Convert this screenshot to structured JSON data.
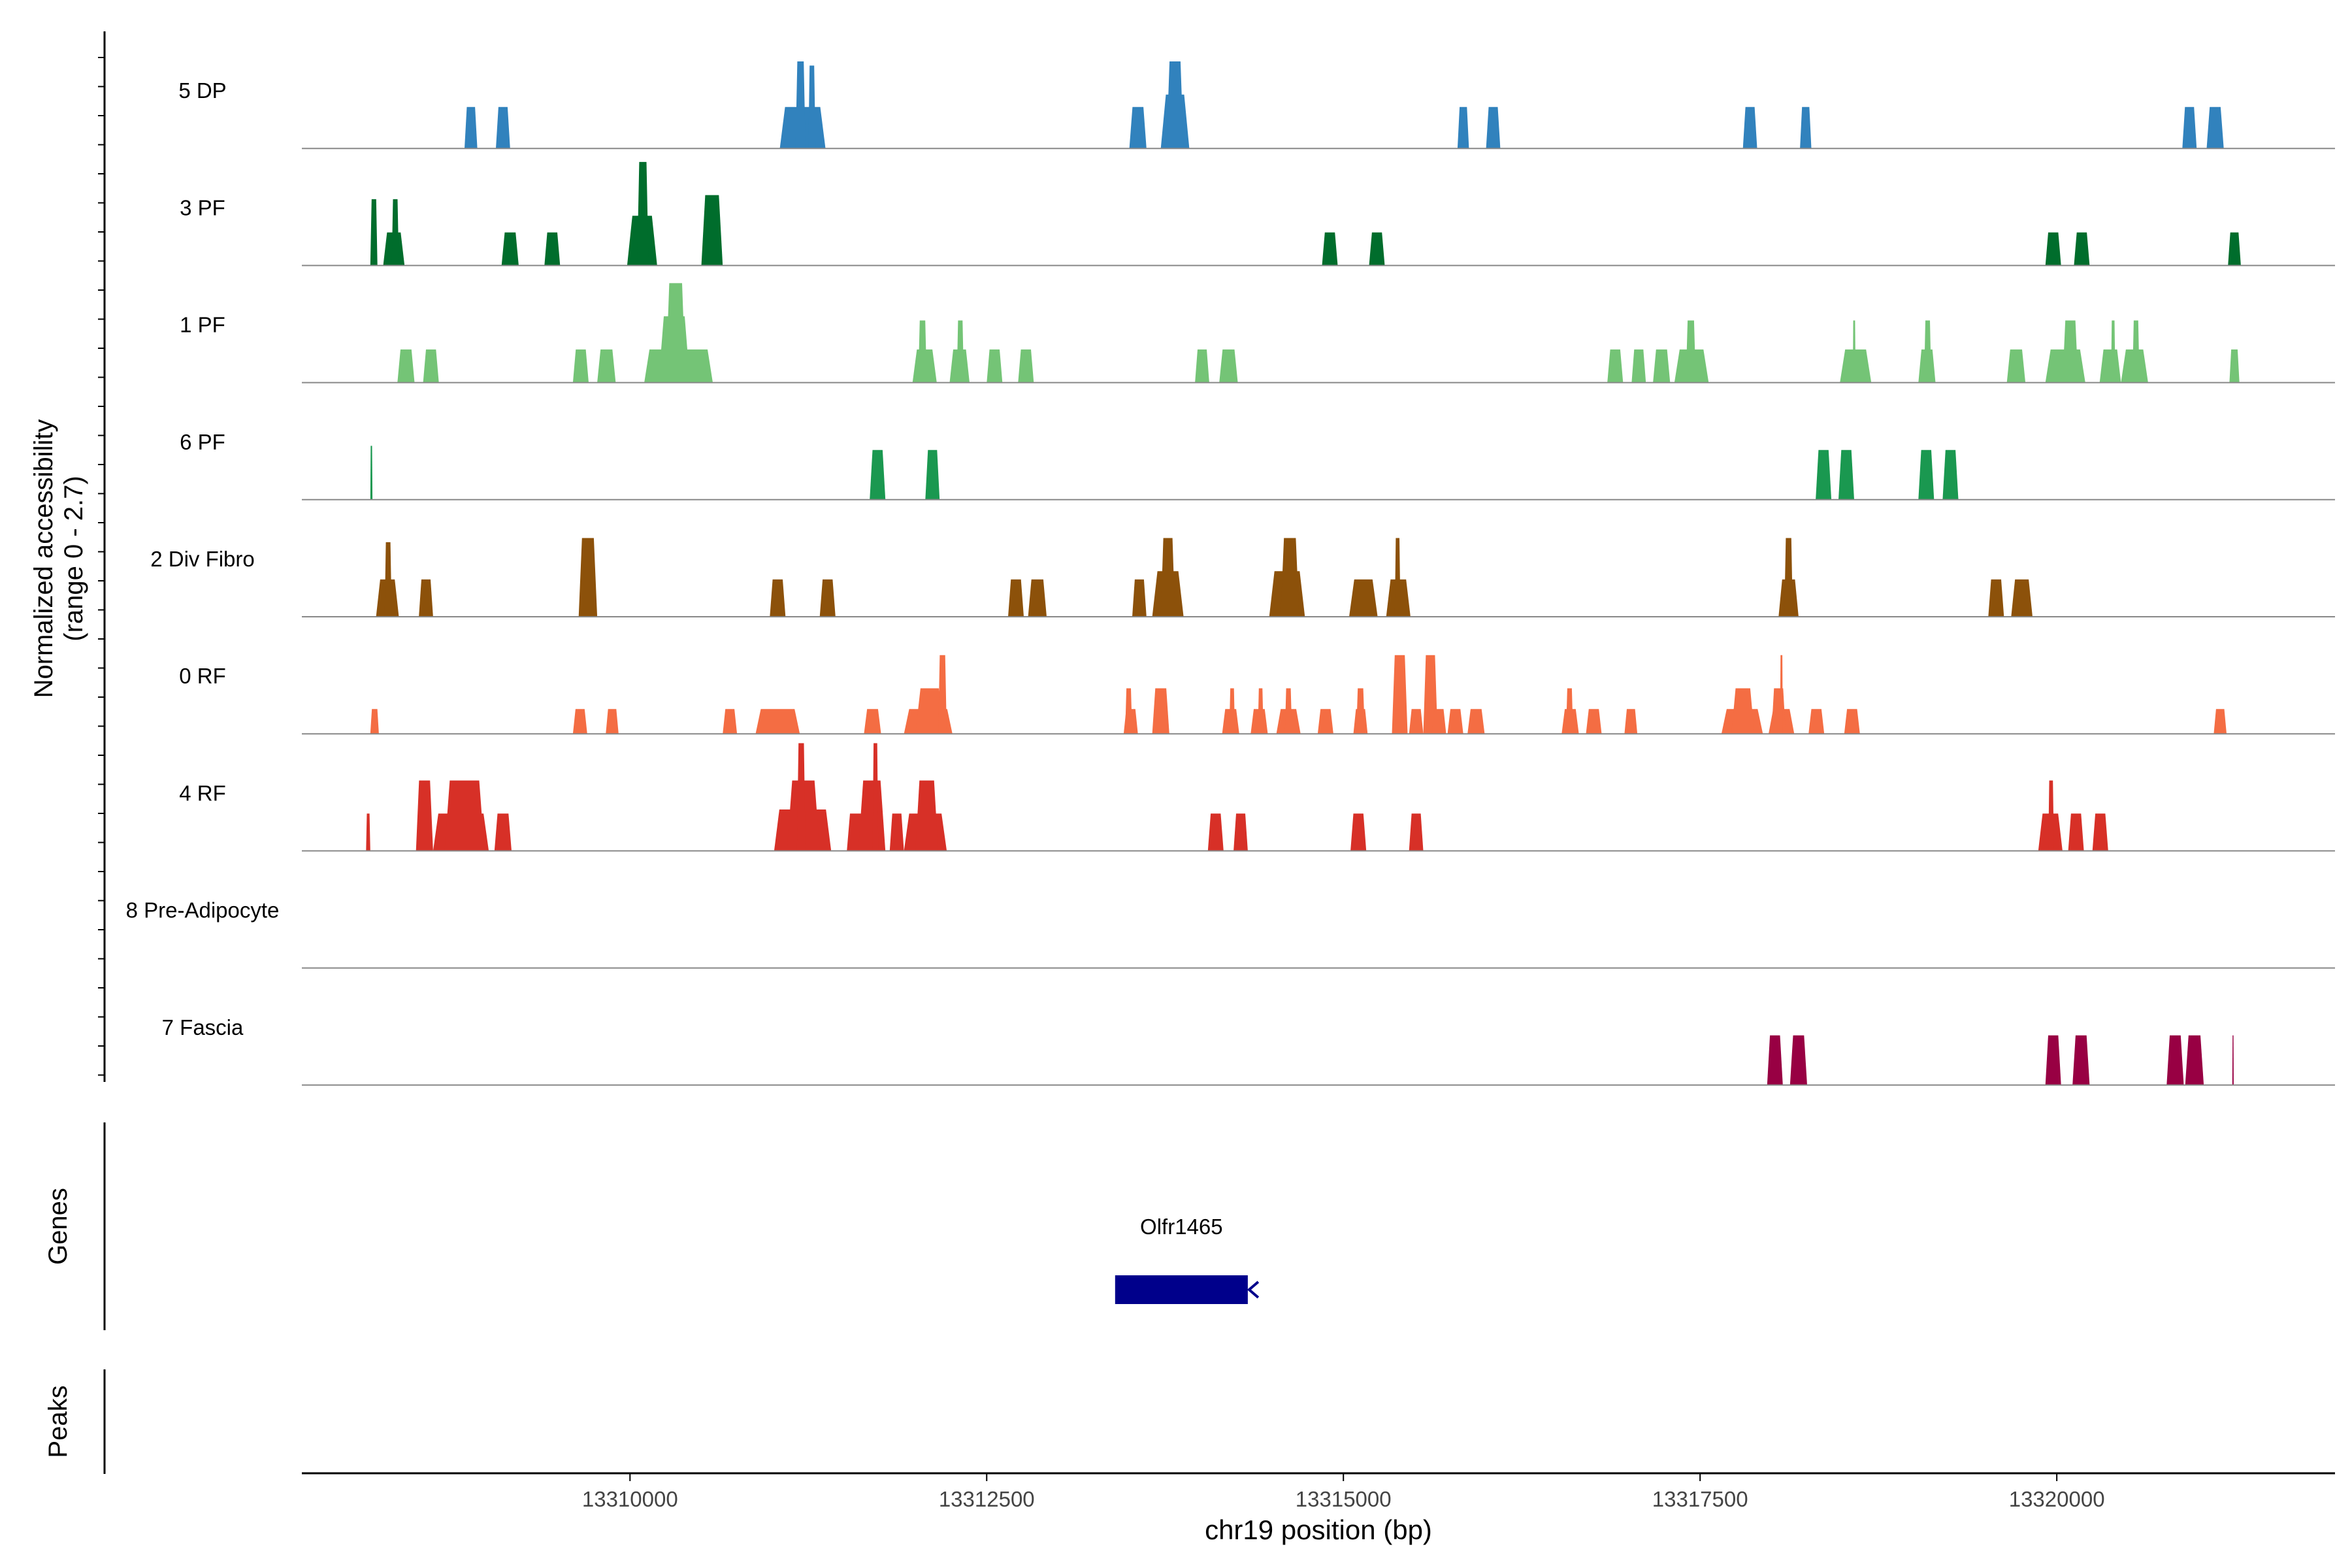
{
  "chart_data": {
    "type": "area",
    "chromosome": "chr19",
    "xlabel": "chr19 position (bp)",
    "x_ticks": [
      13310000,
      13312500,
      13315000,
      13317500,
      13320000
    ],
    "x_tick_labels": [
      "13310000",
      "13312500",
      "13315000",
      "13317500",
      "13320000"
    ],
    "xlim": [
      13307700,
      13321950
    ],
    "ylabel": "Normalized accessibility",
    "ylabel_range": "(range 0 - 2.7)",
    "ylim": [
      0,
      2.7
    ],
    "tracks": [
      {
        "name": "5 DP",
        "color": "#3182bd",
        "peaks": [
          {
            "start": 13308840,
            "end": 13308930,
            "value": 1.0
          },
          {
            "start": 13309060,
            "end": 13309160,
            "value": 1.0
          },
          {
            "start": 13311050,
            "end": 13311370,
            "value": 1.0
          },
          {
            "start": 13311160,
            "end": 13311230,
            "value": 2.1
          },
          {
            "start": 13311250,
            "end": 13311300,
            "value": 2.0
          },
          {
            "start": 13313500,
            "end": 13313620,
            "value": 1.0
          },
          {
            "start": 13313720,
            "end": 13313920,
            "value": 1.3
          },
          {
            "start": 13313760,
            "end": 13313880,
            "value": 2.1
          },
          {
            "start": 13315800,
            "end": 13315880,
            "value": 1.0
          },
          {
            "start": 13316000,
            "end": 13316100,
            "value": 1.0
          },
          {
            "start": 13317800,
            "end": 13317900,
            "value": 1.0
          },
          {
            "start": 13318200,
            "end": 13318280,
            "value": 1.0
          },
          {
            "start": 13320880,
            "end": 13320980,
            "value": 1.0
          },
          {
            "start": 13321050,
            "end": 13321170,
            "value": 1.0
          }
        ]
      },
      {
        "name": "3 PF",
        "color": "#006d2c",
        "peaks": [
          {
            "start": 13308180,
            "end": 13308230,
            "value": 1.6
          },
          {
            "start": 13308270,
            "end": 13308420,
            "value": 0.8
          },
          {
            "start": 13308330,
            "end": 13308380,
            "value": 1.6
          },
          {
            "start": 13309100,
            "end": 13309220,
            "value": 0.8
          },
          {
            "start": 13309400,
            "end": 13309510,
            "value": 0.8
          },
          {
            "start": 13309980,
            "end": 13310190,
            "value": 1.2
          },
          {
            "start": 13310050,
            "end": 13310130,
            "value": 2.5
          },
          {
            "start": 13310500,
            "end": 13310650,
            "value": 1.7
          },
          {
            "start": 13314850,
            "end": 13314960,
            "value": 0.8
          },
          {
            "start": 13315180,
            "end": 13315290,
            "value": 0.8
          },
          {
            "start": 13319920,
            "end": 13320030,
            "value": 0.8
          },
          {
            "start": 13320120,
            "end": 13320230,
            "value": 0.8
          },
          {
            "start": 13321200,
            "end": 13321290,
            "value": 0.8
          }
        ]
      },
      {
        "name": "1 PF",
        "color": "#74c476",
        "peaks": [
          {
            "start": 13308370,
            "end": 13308490,
            "value": 0.8
          },
          {
            "start": 13308550,
            "end": 13308660,
            "value": 0.8
          },
          {
            "start": 13309600,
            "end": 13309710,
            "value": 0.8
          },
          {
            "start": 13309770,
            "end": 13309900,
            "value": 0.8
          },
          {
            "start": 13310100,
            "end": 13310580,
            "value": 0.8
          },
          {
            "start": 13310200,
            "end": 13310420,
            "value": 1.6
          },
          {
            "start": 13310250,
            "end": 13310390,
            "value": 2.4
          },
          {
            "start": 13311980,
            "end": 13312150,
            "value": 0.8
          },
          {
            "start": 13312020,
            "end": 13312080,
            "value": 1.5
          },
          {
            "start": 13312240,
            "end": 13312380,
            "value": 0.8
          },
          {
            "start": 13312290,
            "end": 13312340,
            "value": 1.5
          },
          {
            "start": 13312500,
            "end": 13312610,
            "value": 0.8
          },
          {
            "start": 13312720,
            "end": 13312830,
            "value": 0.8
          },
          {
            "start": 13313960,
            "end": 13314060,
            "value": 0.8
          },
          {
            "start": 13314130,
            "end": 13314260,
            "value": 0.8
          },
          {
            "start": 13316850,
            "end": 13316960,
            "value": 0.8
          },
          {
            "start": 13317020,
            "end": 13317120,
            "value": 0.8
          },
          {
            "start": 13317170,
            "end": 13317290,
            "value": 0.8
          },
          {
            "start": 13317320,
            "end": 13317560,
            "value": 0.8
          },
          {
            "start": 13317400,
            "end": 13317470,
            "value": 1.5
          },
          {
            "start": 13318480,
            "end": 13318700,
            "value": 0.8
          },
          {
            "start": 13318570,
            "end": 13318590,
            "value": 1.5
          },
          {
            "start": 13319030,
            "end": 13319150,
            "value": 0.8
          },
          {
            "start": 13319070,
            "end": 13319120,
            "value": 1.5
          },
          {
            "start": 13319650,
            "end": 13319780,
            "value": 0.8
          },
          {
            "start": 13319920,
            "end": 13320200,
            "value": 0.8
          },
          {
            "start": 13320040,
            "end": 13320150,
            "value": 1.5
          },
          {
            "start": 13320300,
            "end": 13320450,
            "value": 0.8
          },
          {
            "start": 13320380,
            "end": 13320410,
            "value": 1.5
          },
          {
            "start": 13320450,
            "end": 13320640,
            "value": 0.8
          },
          {
            "start": 13320530,
            "end": 13320580,
            "value": 1.5
          },
          {
            "start": 13321210,
            "end": 13321280,
            "value": 0.8
          }
        ]
      },
      {
        "name": "6 PF",
        "color": "#1a9850",
        "peaks": [
          {
            "start": 13308180,
            "end": 13308195,
            "value": 1.3
          },
          {
            "start": 13311680,
            "end": 13311790,
            "value": 1.2
          },
          {
            "start": 13312070,
            "end": 13312170,
            "value": 1.2
          },
          {
            "start": 13318310,
            "end": 13318420,
            "value": 1.2
          },
          {
            "start": 13318470,
            "end": 13318580,
            "value": 1.2
          },
          {
            "start": 13319030,
            "end": 13319140,
            "value": 1.2
          },
          {
            "start": 13319200,
            "end": 13319310,
            "value": 1.2
          }
        ]
      },
      {
        "name": "2 Div Fibro",
        "color": "#8c510a",
        "peaks": [
          {
            "start": 13308220,
            "end": 13308380,
            "value": 0.9
          },
          {
            "start": 13308280,
            "end": 13308330,
            "value": 1.8
          },
          {
            "start": 13308520,
            "end": 13308620,
            "value": 0.9
          },
          {
            "start": 13309640,
            "end": 13309770,
            "value": 1.9
          },
          {
            "start": 13310980,
            "end": 13311090,
            "value": 0.9
          },
          {
            "start": 13311330,
            "end": 13311440,
            "value": 0.9
          },
          {
            "start": 13312650,
            "end": 13312760,
            "value": 0.9
          },
          {
            "start": 13312790,
            "end": 13312920,
            "value": 0.9
          },
          {
            "start": 13313520,
            "end": 13313620,
            "value": 0.9
          },
          {
            "start": 13313660,
            "end": 13313880,
            "value": 1.1
          },
          {
            "start": 13313720,
            "end": 13313820,
            "value": 1.9
          },
          {
            "start": 13314480,
            "end": 13314730,
            "value": 1.1
          },
          {
            "start": 13314560,
            "end": 13314690,
            "value": 1.9
          },
          {
            "start": 13315040,
            "end": 13315240,
            "value": 0.9
          },
          {
            "start": 13315300,
            "end": 13315470,
            "value": 0.9
          },
          {
            "start": 13315360,
            "end": 13315400,
            "value": 1.9
          },
          {
            "start": 13318050,
            "end": 13318190,
            "value": 0.9
          },
          {
            "start": 13318090,
            "end": 13318150,
            "value": 1.9
          },
          {
            "start": 13319520,
            "end": 13319630,
            "value": 0.9
          },
          {
            "start": 13319680,
            "end": 13319830,
            "value": 0.9
          }
        ]
      },
      {
        "name": "0 RF",
        "color": "#f46d43",
        "peaks": [
          {
            "start": 13308180,
            "end": 13308240,
            "value": 0.6
          },
          {
            "start": 13309600,
            "end": 13309700,
            "value": 0.6
          },
          {
            "start": 13309830,
            "end": 13309920,
            "value": 0.6
          },
          {
            "start": 13310650,
            "end": 13310750,
            "value": 0.6
          },
          {
            "start": 13310880,
            "end": 13311190,
            "value": 0.6
          },
          {
            "start": 13311640,
            "end": 13311760,
            "value": 0.6
          },
          {
            "start": 13311920,
            "end": 13312260,
            "value": 0.6
          },
          {
            "start": 13312000,
            "end": 13312200,
            "value": 1.1
          },
          {
            "start": 13312160,
            "end": 13312220,
            "value": 1.9
          },
          {
            "start": 13313460,
            "end": 13313560,
            "value": 0.6
          },
          {
            "start": 13313470,
            "end": 13313520,
            "value": 1.1
          },
          {
            "start": 13313660,
            "end": 13313780,
            "value": 1.1
          },
          {
            "start": 13314150,
            "end": 13314270,
            "value": 0.6
          },
          {
            "start": 13314200,
            "end": 13314240,
            "value": 1.1
          },
          {
            "start": 13314350,
            "end": 13314470,
            "value": 0.6
          },
          {
            "start": 13314400,
            "end": 13314440,
            "value": 1.1
          },
          {
            "start": 13314530,
            "end": 13314700,
            "value": 0.6
          },
          {
            "start": 13314590,
            "end": 13314640,
            "value": 1.1
          },
          {
            "start": 13314820,
            "end": 13314930,
            "value": 0.6
          },
          {
            "start": 13315070,
            "end": 13315170,
            "value": 0.6
          },
          {
            "start": 13315090,
            "end": 13315150,
            "value": 1.1
          },
          {
            "start": 13315340,
            "end": 13315450,
            "value": 1.9
          },
          {
            "start": 13315460,
            "end": 13315560,
            "value": 0.6
          },
          {
            "start": 13315560,
            "end": 13315660,
            "value": 1.9
          },
          {
            "start": 13315620,
            "end": 13315720,
            "value": 0.6
          },
          {
            "start": 13315730,
            "end": 13315840,
            "value": 0.6
          },
          {
            "start": 13315870,
            "end": 13315990,
            "value": 0.6
          },
          {
            "start": 13316530,
            "end": 13316650,
            "value": 0.6
          },
          {
            "start": 13316560,
            "end": 13316610,
            "value": 1.1
          },
          {
            "start": 13316700,
            "end": 13316810,
            "value": 0.6
          },
          {
            "start": 13316970,
            "end": 13317060,
            "value": 0.6
          },
          {
            "start": 13317650,
            "end": 13317940,
            "value": 0.6
          },
          {
            "start": 13317720,
            "end": 13317880,
            "value": 1.1
          },
          {
            "start": 13317980,
            "end": 13318160,
            "value": 0.6
          },
          {
            "start": 13318000,
            "end": 13318100,
            "value": 1.1
          },
          {
            "start": 13318060,
            "end": 13318080,
            "value": 1.9
          },
          {
            "start": 13318260,
            "end": 13318370,
            "value": 0.6
          },
          {
            "start": 13318510,
            "end": 13318620,
            "value": 0.6
          },
          {
            "start": 13321100,
            "end": 13321190,
            "value": 0.6
          }
        ]
      },
      {
        "name": "4 RF",
        "color": "#d73027",
        "peaks": [
          {
            "start": 13308150,
            "end": 13308180,
            "value": 0.9
          },
          {
            "start": 13308500,
            "end": 13308620,
            "value": 1.7
          },
          {
            "start": 13308620,
            "end": 13309010,
            "value": 0.9
          },
          {
            "start": 13308700,
            "end": 13308980,
            "value": 1.7
          },
          {
            "start": 13309050,
            "end": 13309170,
            "value": 0.9
          },
          {
            "start": 13311010,
            "end": 13311410,
            "value": 1.0
          },
          {
            "start": 13311100,
            "end": 13311330,
            "value": 1.7
          },
          {
            "start": 13311170,
            "end": 13311230,
            "value": 2.6
          },
          {
            "start": 13311520,
            "end": 13311640,
            "value": 0.9
          },
          {
            "start": 13311600,
            "end": 13311790,
            "value": 1.7
          },
          {
            "start": 13311700,
            "end": 13311740,
            "value": 2.6
          },
          {
            "start": 13311820,
            "end": 13311920,
            "value": 0.9
          },
          {
            "start": 13311920,
            "end": 13312220,
            "value": 0.9
          },
          {
            "start": 13312000,
            "end": 13312160,
            "value": 1.7
          },
          {
            "start": 13314050,
            "end": 13314160,
            "value": 0.9
          },
          {
            "start": 13314230,
            "end": 13314330,
            "value": 0.9
          },
          {
            "start": 13315050,
            "end": 13315160,
            "value": 0.9
          },
          {
            "start": 13315460,
            "end": 13315560,
            "value": 0.9
          },
          {
            "start": 13319870,
            "end": 13320040,
            "value": 0.9
          },
          {
            "start": 13319940,
            "end": 13319980,
            "value": 1.7
          },
          {
            "start": 13320080,
            "end": 13320190,
            "value": 0.9
          },
          {
            "start": 13320250,
            "end": 13320360,
            "value": 0.9
          }
        ]
      },
      {
        "name": "8 Pre-Adipocyte",
        "color": "#6a51a3",
        "peaks": []
      },
      {
        "name": "7 Fascia",
        "color": "#980043",
        "peaks": [
          {
            "start": 13317970,
            "end": 13318080,
            "value": 1.2
          },
          {
            "start": 13318130,
            "end": 13318250,
            "value": 1.2
          },
          {
            "start": 13319920,
            "end": 13320030,
            "value": 1.2
          },
          {
            "start": 13320110,
            "end": 13320230,
            "value": 1.2
          },
          {
            "start": 13320770,
            "end": 13320890,
            "value": 1.2
          },
          {
            "start": 13320900,
            "end": 13321030,
            "value": 1.2
          },
          {
            "start": 13321230,
            "end": 13321240,
            "value": 1.2
          }
        ]
      }
    ],
    "genes_track": {
      "label": "Genes",
      "genes": [
        {
          "name": "Olfr1465",
          "start": 13313400,
          "end": 13314330,
          "strand": "-",
          "color": "#00008b"
        }
      ]
    },
    "peaks_track": {
      "label": "Peaks",
      "peaks": []
    }
  }
}
